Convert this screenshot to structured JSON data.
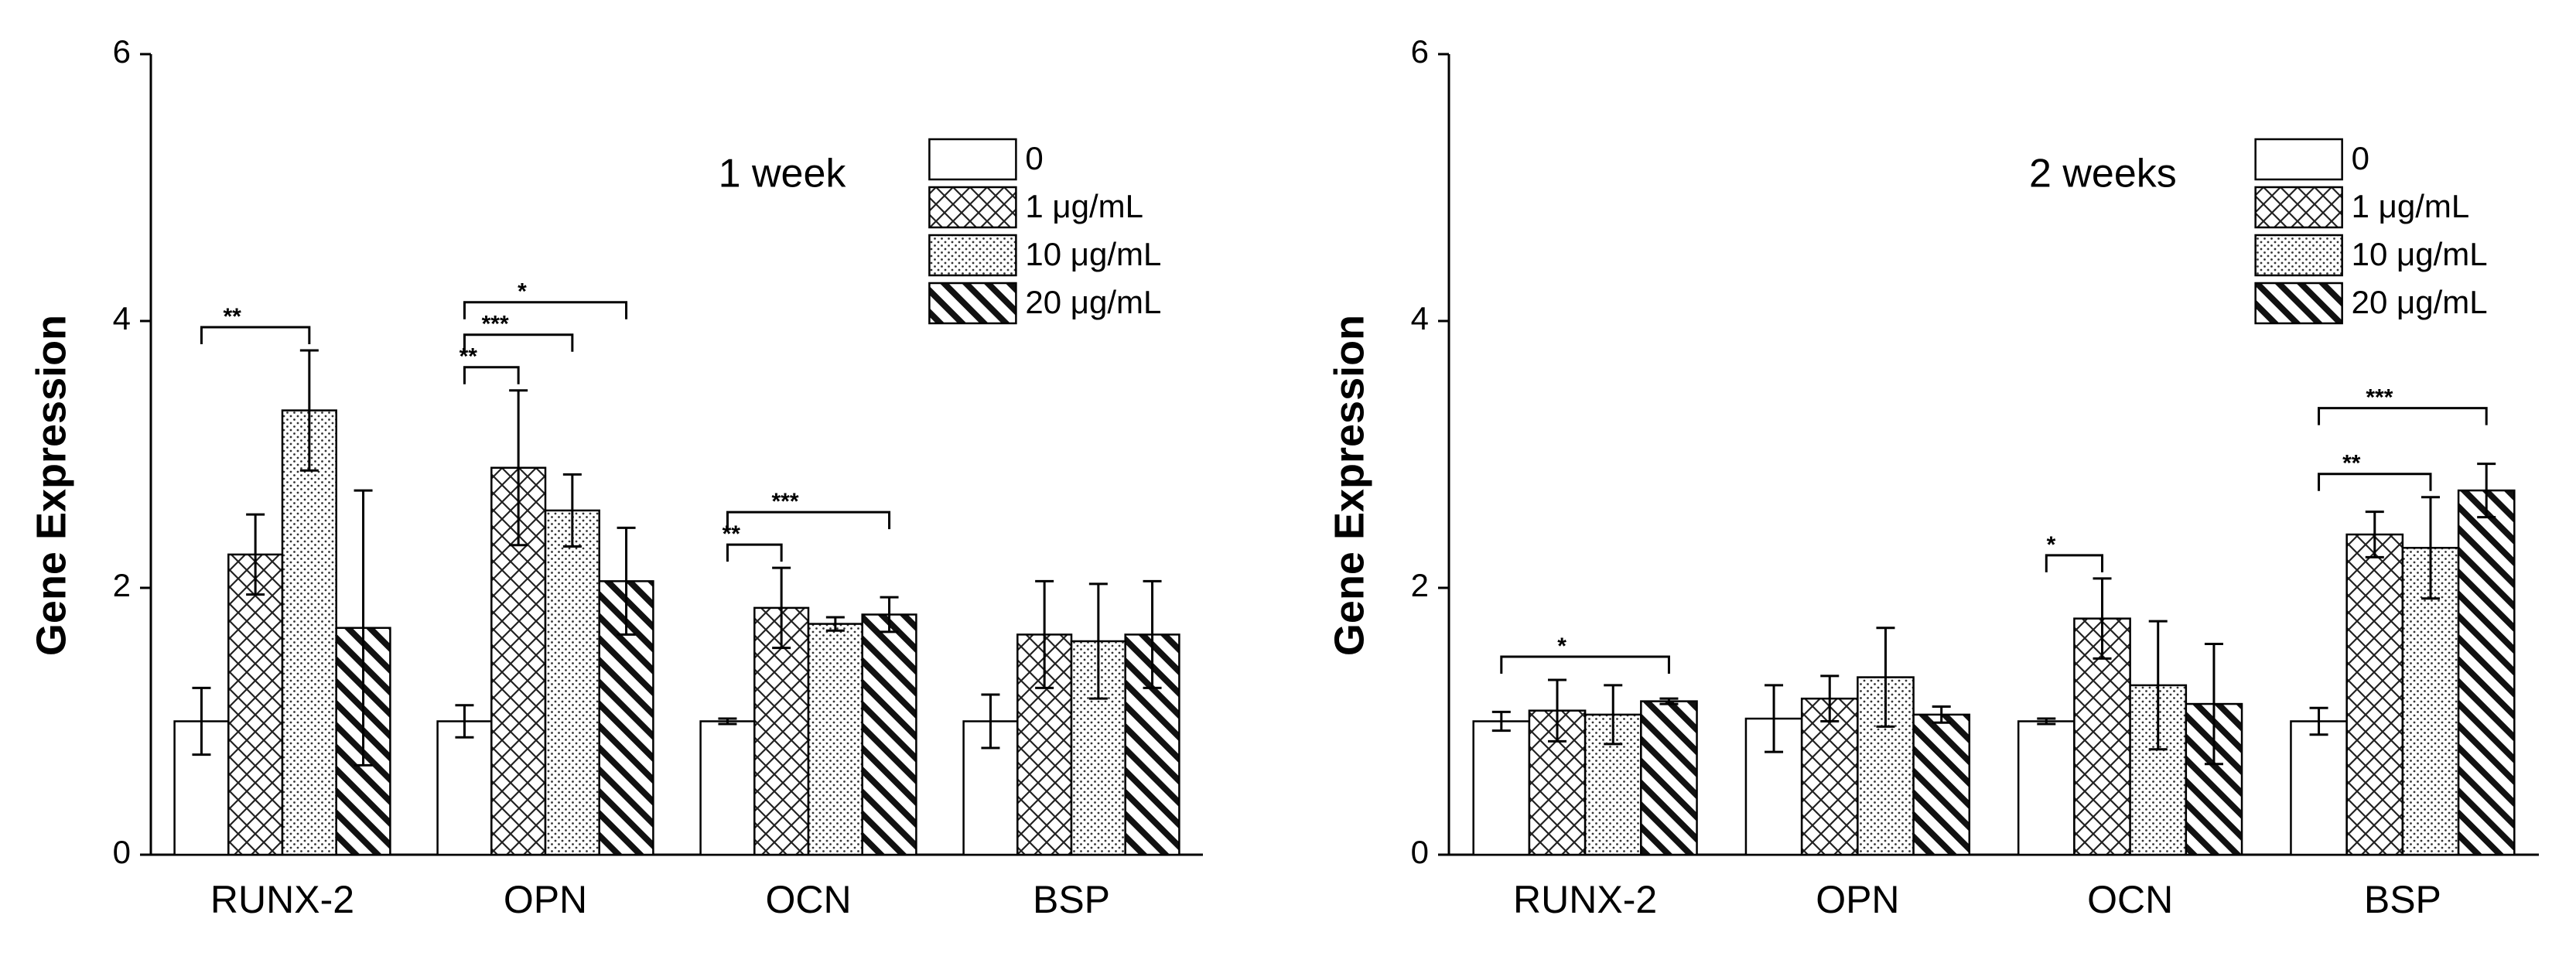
{
  "chart_data": [
    {
      "type": "bar",
      "title": "1 week",
      "y_label": "Gene Expression",
      "categories": [
        "RUNX-2",
        "OPN",
        "OCN",
        "BSP"
      ],
      "ylim": [
        0,
        6
      ],
      "yticks": [
        0,
        2,
        4,
        6
      ],
      "series": [
        {
          "name": "0",
          "pattern": "none",
          "values": [
            1.0,
            1.0,
            1.0,
            1.0
          ],
          "errors": [
            0.25,
            0.12,
            0.02,
            0.2
          ]
        },
        {
          "name": "1 μg/mL",
          "pattern": "crosshatch",
          "values": [
            2.25,
            2.9,
            1.85,
            1.65
          ],
          "errors": [
            0.3,
            0.58,
            0.3,
            0.4
          ]
        },
        {
          "name": "10 μg/mL",
          "pattern": "dots",
          "values": [
            3.33,
            2.58,
            1.73,
            1.6
          ],
          "errors": [
            0.45,
            0.27,
            0.05,
            0.43
          ]
        },
        {
          "name": "20 μg/mL",
          "pattern": "diagonal",
          "values": [
            1.7,
            2.05,
            1.8,
            1.65
          ],
          "errors": [
            1.03,
            0.4,
            0.13,
            0.4
          ]
        }
      ],
      "annotations": [
        {
          "text": "**",
          "category": 0,
          "from": 0,
          "to": 2
        },
        {
          "text": "**",
          "category": 1,
          "from": 0,
          "to": 1
        },
        {
          "text": "***",
          "category": 1,
          "from": 0,
          "to": 2
        },
        {
          "text": "*",
          "category": 1,
          "from": 0,
          "to": 3
        },
        {
          "text": "**",
          "category": 2,
          "from": 0,
          "to": 1
        },
        {
          "text": "***",
          "category": 2,
          "from": 0,
          "to": 3
        }
      ]
    },
    {
      "type": "bar",
      "title": "2 weeks",
      "y_label": "Gene Expression",
      "categories": [
        "RUNX-2",
        "OPN",
        "OCN",
        "BSP"
      ],
      "ylim": [
        0,
        6
      ],
      "yticks": [
        0,
        2,
        4,
        6
      ],
      "series": [
        {
          "name": "0",
          "pattern": "none",
          "values": [
            1.0,
            1.02,
            1.0,
            1.0
          ],
          "errors": [
            0.07,
            0.25,
            0.02,
            0.1
          ]
        },
        {
          "name": "1 μg/mL",
          "pattern": "crosshatch",
          "values": [
            1.08,
            1.17,
            1.77,
            2.4
          ],
          "errors": [
            0.23,
            0.17,
            0.3,
            0.17
          ]
        },
        {
          "name": "10 μg/mL",
          "pattern": "dots",
          "values": [
            1.05,
            1.33,
            1.27,
            2.3
          ],
          "errors": [
            0.22,
            0.37,
            0.48,
            0.38
          ]
        },
        {
          "name": "20 μg/mL",
          "pattern": "diagonal",
          "values": [
            1.15,
            1.05,
            1.13,
            2.73
          ],
          "errors": [
            0.02,
            0.06,
            0.45,
            0.2
          ]
        }
      ],
      "annotations": [
        {
          "text": "*",
          "category": 0,
          "from": 0,
          "to": 3
        },
        {
          "text": "*",
          "category": 2,
          "from": 0,
          "to": 1
        },
        {
          "text": "**",
          "category": 3,
          "from": 0,
          "to": 2
        },
        {
          "text": "***",
          "category": 3,
          "from": 0,
          "to": 3
        }
      ]
    }
  ]
}
